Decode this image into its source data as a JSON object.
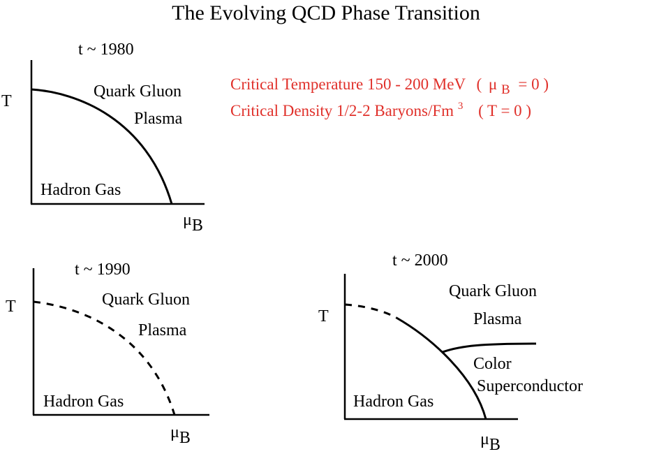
{
  "title": "The Evolving QCD Phase Transition",
  "critical_notes": {
    "temperature": "Critical Temperature 150 - 200 MeV",
    "temperature_condition_open": "(",
    "temperature_condition_mu": "μ",
    "temperature_condition_sub": "B",
    "temperature_condition_close": "= 0 )",
    "density": "Critical Density 1/2-2 Baryons/Fm",
    "density_sup": "3",
    "density_condition": "( T = 0 )",
    "color": "#e0302a"
  },
  "panels": {
    "p1980": {
      "era": "t ~ 1980",
      "y_axis": "T",
      "x_axis_mu": "μ",
      "x_axis_sub": "B",
      "upper_phase_line1": "Quark Gluon",
      "upper_phase_line2": "Plasma",
      "lower_phase": "Hadron Gas",
      "boundary_style": "solid"
    },
    "p1990": {
      "era": "t ~ 1990",
      "y_axis": "T",
      "x_axis_mu": "μ",
      "x_axis_sub": "B",
      "upper_phase_line1": "Quark Gluon",
      "upper_phase_line2": "Plasma",
      "lower_phase": "Hadron Gas",
      "boundary_style": "dashed"
    },
    "p2000": {
      "era": "t ~ 2000",
      "y_axis": "T",
      "x_axis_mu": "μ",
      "x_axis_sub": "B",
      "upper_phase_line1": "Quark Gluon",
      "upper_phase_line2": "Plasma",
      "lower_phase": "Hadron Gas",
      "third_phase_line1": "Color",
      "third_phase_line2": "Superconductor",
      "boundary_style": "dashed then solid"
    }
  }
}
